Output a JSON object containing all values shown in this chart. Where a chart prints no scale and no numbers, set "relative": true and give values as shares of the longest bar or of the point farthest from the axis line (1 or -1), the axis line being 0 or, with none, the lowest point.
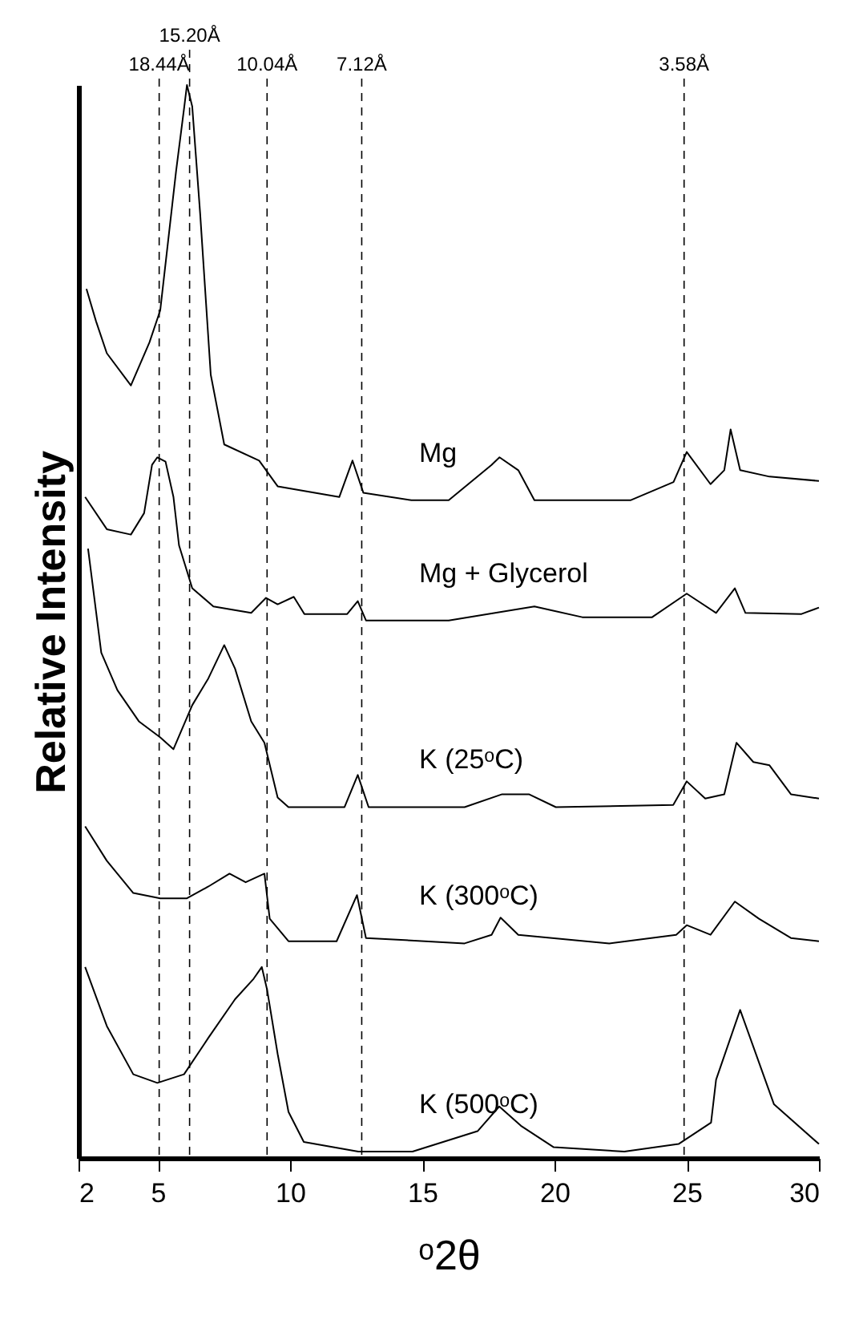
{
  "chart_data": {
    "type": "line",
    "relative": true,
    "xlabel": "ᵒ2θ",
    "ylabel": "Relative Intensity",
    "xlim": [
      2,
      30
    ],
    "xticks": [
      2,
      5,
      10,
      15,
      20,
      25,
      30
    ],
    "tick_labels": "x",
    "line_style": "solid",
    "series": [
      {
        "name": "Mg",
        "color": "#000000",
        "x": [
          2.3,
          2.66,
          3.07,
          3.98,
          4.68,
          5.09,
          5.69,
          6.0,
          6.1,
          6.3,
          6.6,
          7.0,
          7.51,
          8.83,
          9.53,
          11.86,
          12.36,
          12.77,
          14.59,
          16.0,
          17.62,
          17.92,
          18.63,
          19.24,
          22.87,
          24.5,
          25.0,
          25.9,
          26.42,
          26.66,
          27.02,
          28.13,
          30
        ],
        "values": [
          0.81,
          0.78,
          0.75,
          0.72,
          0.76,
          0.79,
          0.92,
          0.98,
          1.0,
          0.98,
          0.88,
          0.73,
          0.665,
          0.65,
          0.626,
          0.616,
          0.65,
          0.62,
          0.613,
          0.613,
          0.646,
          0.653,
          0.641,
          0.613,
          0.613,
          0.63,
          0.658,
          0.628,
          0.641,
          0.679,
          0.641,
          0.635,
          0.631
        ]
      },
      {
        "name": "Mg + Glycerol",
        "color": "#000000",
        "x": [
          2.25,
          3.07,
          3.98,
          4.48,
          4.78,
          4.98,
          5.29,
          5.59,
          5.8,
          6.3,
          7.1,
          8.53,
          9.09,
          9.53,
          10.14,
          10.54,
          12.16,
          12.56,
          12.87,
          16.0,
          19.24,
          21.05,
          23.69,
          25.0,
          26.11,
          26.82,
          27.22,
          29.34,
          30
        ],
        "values": [
          0.616,
          0.586,
          0.581,
          0.601,
          0.646,
          0.653,
          0.649,
          0.616,
          0.571,
          0.531,
          0.514,
          0.508,
          0.522,
          0.516,
          0.523,
          0.507,
          0.507,
          0.519,
          0.501,
          0.501,
          0.514,
          0.504,
          0.504,
          0.526,
          0.508,
          0.531,
          0.508,
          0.507,
          0.513
        ]
      },
      {
        "name": "K (25ᵒC)",
        "color": "#000000",
        "x": [
          2.36,
          2.86,
          3.47,
          4.28,
          5.09,
          5.59,
          6.3,
          6.91,
          7.51,
          7.92,
          8.53,
          9.03,
          9.53,
          9.94,
          12.06,
          12.56,
          12.97,
          16.6,
          18.02,
          19.03,
          20.05,
          24.49,
          25.0,
          25.7,
          26.42,
          26.88,
          27.52,
          28.13,
          28.94,
          30
        ],
        "values": [
          0.568,
          0.471,
          0.436,
          0.407,
          0.392,
          0.381,
          0.422,
          0.447,
          0.478,
          0.456,
          0.407,
          0.387,
          0.336,
          0.327,
          0.327,
          0.357,
          0.327,
          0.327,
          0.339,
          0.339,
          0.327,
          0.329,
          0.351,
          0.335,
          0.339,
          0.387,
          0.369,
          0.366,
          0.339,
          0.335
        ]
      },
      {
        "name": "K (300ᵒC)",
        "color": "#000000",
        "x": [
          2.25,
          3.07,
          4.07,
          5.09,
          6.1,
          6.91,
          7.71,
          8.32,
          9.03,
          9.23,
          9.94,
          11.76,
          12.53,
          12.87,
          16.6,
          17.62,
          17.96,
          18.63,
          22.07,
          24.6,
          25.0,
          25.9,
          26.82,
          27.73,
          28.94,
          30
        ],
        "values": [
          0.309,
          0.277,
          0.247,
          0.242,
          0.242,
          0.253,
          0.265,
          0.257,
          0.265,
          0.223,
          0.202,
          0.202,
          0.245,
          0.205,
          0.2,
          0.208,
          0.224,
          0.208,
          0.2,
          0.208,
          0.217,
          0.208,
          0.239,
          0.223,
          0.205,
          0.202
        ]
      },
      {
        "name": "K (500ᵒC)",
        "color": "#000000",
        "x": [
          2.25,
          3.07,
          4.07,
          4.98,
          5.99,
          6.91,
          7.92,
          8.62,
          8.93,
          9.13,
          9.53,
          9.94,
          10.52,
          12.58,
          14.63,
          17.09,
          17.91,
          18.73,
          19.97,
          22.64,
          24.69,
          25.92,
          26.11,
          27.02,
          28.3,
          30
        ],
        "values": [
          0.178,
          0.123,
          0.078,
          0.07,
          0.078,
          0.112,
          0.148,
          0.167,
          0.178,
          0.157,
          0.097,
          0.043,
          0.015,
          0.006,
          0.006,
          0.025,
          0.048,
          0.03,
          0.01,
          0.006,
          0.013,
          0.033,
          0.073,
          0.138,
          0.05,
          0.013
        ]
      }
    ],
    "ref_lines": [
      {
        "axis": "x",
        "value": 5.05,
        "label": "18.44Å",
        "line_style": "dashed"
      },
      {
        "axis": "x",
        "value": 6.2,
        "label": "15.20Å",
        "line_style": "dashed"
      },
      {
        "axis": "x",
        "value": 9.13,
        "label": "10.04Å",
        "line_style": "dashed"
      },
      {
        "axis": "x",
        "value": 12.71,
        "label": "7.12Å",
        "line_style": "dashed"
      },
      {
        "axis": "x",
        "value": 24.9,
        "label": "3.58Å",
        "line_style": "dashed"
      }
    ]
  }
}
